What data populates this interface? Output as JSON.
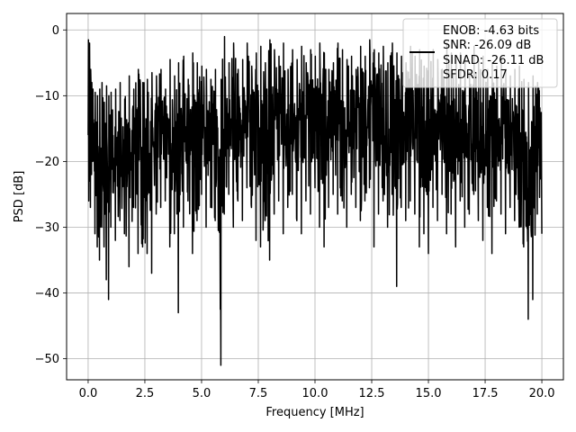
{
  "chart_data": {
    "type": "line",
    "title": "",
    "xlabel": "Frequency [MHz]",
    "ylabel": "PSD [dB]",
    "xlim": [
      -0.95,
      20.95
    ],
    "ylim": [
      -53.2,
      2.5
    ],
    "xticks": [
      0.0,
      2.5,
      5.0,
      7.5,
      10.0,
      12.5,
      15.0,
      17.5,
      20.0
    ],
    "xtick_labels": [
      "0.0",
      "2.5",
      "5.0",
      "7.5",
      "10.0",
      "12.5",
      "15.0",
      "17.5",
      "20.0"
    ],
    "yticks": [
      0,
      -10,
      -20,
      -30,
      -40,
      -50
    ],
    "ytick_labels": [
      "0",
      "−10",
      "−20",
      "−30",
      "−40",
      "−50"
    ],
    "grid": true,
    "legend_position": "top-right",
    "series": [
      {
        "name": "",
        "color": "#000000",
        "legend_lines": [
          "ENOB: -4.63 bits",
          "SNR: -26.09 dB",
          "SINAD: -26.11 dB",
          "SFDR: 0.17"
        ],
        "x": [
          0.0,
          0.02,
          0.05,
          0.1,
          0.15,
          0.2,
          0.3,
          0.4,
          0.5,
          0.6,
          0.7,
          0.8,
          0.9,
          1.0,
          1.2,
          1.4,
          1.6,
          1.8,
          2.0,
          2.2,
          2.4,
          2.6,
          2.8,
          3.0,
          3.2,
          3.4,
          3.6,
          3.8,
          3.98,
          4.2,
          4.4,
          4.6,
          4.8,
          5.0,
          5.2,
          5.4,
          5.6,
          5.85,
          6.0,
          6.2,
          6.4,
          6.6,
          6.8,
          7.0,
          7.2,
          7.4,
          7.6,
          7.8,
          8.0,
          8.2,
          8.4,
          8.6,
          8.8,
          9.0,
          9.2,
          9.4,
          9.6,
          9.8,
          10.0,
          10.2,
          10.4,
          10.6,
          10.8,
          11.0,
          11.2,
          11.4,
          11.6,
          11.8,
          12.0,
          12.2,
          12.4,
          12.6,
          12.8,
          13.0,
          13.2,
          13.4,
          13.6,
          13.8,
          14.0,
          14.2,
          14.4,
          14.6,
          14.8,
          15.0,
          15.2,
          15.4,
          15.6,
          15.8,
          16.0,
          16.2,
          16.4,
          16.6,
          16.8,
          17.0,
          17.2,
          17.4,
          17.6,
          17.8,
          18.0,
          18.2,
          18.4,
          18.6,
          18.8,
          19.0,
          19.2,
          19.4,
          19.6,
          19.8,
          20.0
        ],
        "upper": [
          -1.5,
          -4.0,
          -2.0,
          -6.0,
          -8.0,
          -9.0,
          -9.5,
          -10.0,
          -9.0,
          -8.0,
          -11.0,
          -8.5,
          -10.0,
          -9.5,
          -9.0,
          -8.0,
          -10.5,
          -7.0,
          -9.0,
          -6.0,
          -8.0,
          -7.5,
          -6.5,
          -7.0,
          -6.0,
          -9.0,
          -4.5,
          -7.0,
          -5.0,
          -4.0,
          -7.5,
          -3.5,
          -5.0,
          -5.5,
          -6.0,
          -7.5,
          -6.0,
          -7.5,
          -1.0,
          -5.0,
          -2.0,
          -6.0,
          -4.5,
          -2.0,
          -5.5,
          -3.5,
          -2.5,
          -5.0,
          -1.5,
          -3.0,
          -4.0,
          -2.0,
          -6.0,
          -3.0,
          -4.5,
          -2.5,
          -5.0,
          -3.0,
          -4.0,
          -2.0,
          -3.5,
          -6.0,
          -5.0,
          -2.0,
          -3.0,
          -4.5,
          -4.0,
          -6.0,
          -2.5,
          -4.0,
          -1.5,
          -3.0,
          -3.5,
          -2.5,
          -5.0,
          -2.0,
          -3.5,
          -4.0,
          -5.0,
          -2.5,
          -4.0,
          -3.0,
          -5.5,
          -3.5,
          -3.0,
          -4.5,
          -6.0,
          -2.0,
          -3.5,
          -4.5,
          -3.5,
          -4.0,
          -6.5,
          -2.5,
          -4.5,
          -4.0,
          -6.0,
          -5.0,
          -5.5,
          -4.5,
          -6.0,
          -7.0,
          -6.0,
          -5.5,
          -7.5,
          -8.0,
          -7.0,
          -8.0,
          -8.0
        ],
        "lower": [
          -16.0,
          -26.0,
          -23.0,
          -27.0,
          -22.0,
          -20.0,
          -31.0,
          -33.0,
          -35.0,
          -30.0,
          -33.0,
          -38.0,
          -41.0,
          -30.0,
          -32.0,
          -29.0,
          -31.0,
          -36.0,
          -27.0,
          -34.0,
          -33.0,
          -34.0,
          -37.0,
          -28.0,
          -27.0,
          -26.0,
          -33.0,
          -31.0,
          -43.0,
          -30.0,
          -26.0,
          -34.0,
          -29.0,
          -25.0,
          -30.0,
          -27.0,
          -29.0,
          -51.0,
          -28.0,
          -25.0,
          -30.0,
          -26.0,
          -29.0,
          -24.0,
          -27.0,
          -32.0,
          -33.0,
          -29.0,
          -35.0,
          -28.0,
          -26.0,
          -31.0,
          -27.0,
          -25.0,
          -29.0,
          -31.0,
          -26.0,
          -28.0,
          -24.0,
          -30.0,
          -33.0,
          -27.0,
          -25.0,
          -28.0,
          -26.0,
          -30.0,
          -25.0,
          -27.0,
          -29.0,
          -26.0,
          -24.0,
          -33.0,
          -28.0,
          -26.0,
          -30.0,
          -25.0,
          -39.0,
          -27.0,
          -29.0,
          -26.0,
          -28.0,
          -33.0,
          -31.0,
          -34.0,
          -27.0,
          -29.0,
          -25.0,
          -31.0,
          -28.0,
          -33.0,
          -26.0,
          -30.0,
          -28.0,
          -25.0,
          -29.0,
          -32.0,
          -27.0,
          -34.0,
          -26.0,
          -28.0,
          -31.0,
          -27.0,
          -29.0,
          -30.0,
          -33.0,
          -44.0,
          -41.0,
          -28.0,
          -31.0
        ]
      }
    ]
  }
}
